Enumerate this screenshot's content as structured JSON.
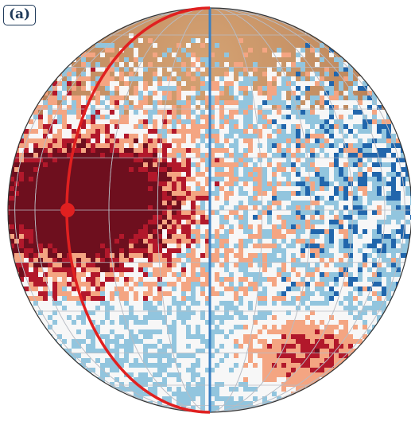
{
  "panel": {
    "label": "(a)"
  },
  "colors": {
    "background": "#ffffff",
    "label_border": "#1f3a5a",
    "terrain_light": "#c89366",
    "terrain_dark": "#9a5a3a",
    "deep_red": "#6e0f1e",
    "red": "#b2182b",
    "light_red": "#f4a582",
    "neutral": "#f7f7f7",
    "light_blue": "#92c5de",
    "blue": "#2166ac",
    "deep_blue": "#143a6c",
    "red_meridian": "#e02020",
    "blue_meridian": "#3a7fc1",
    "graticule": "#b8bcc4",
    "outline": "#333333"
  },
  "markers": [
    {
      "name": "red-point",
      "color": "#e02020"
    }
  ]
}
